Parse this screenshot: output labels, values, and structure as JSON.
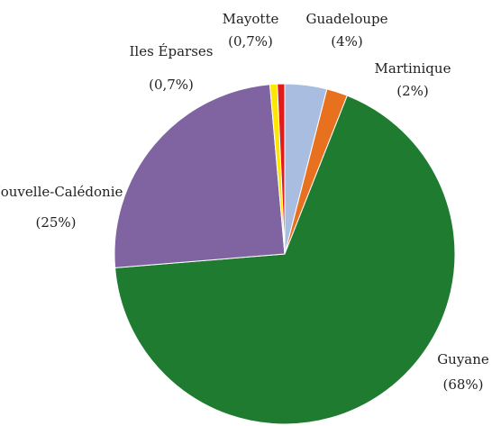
{
  "chart_data": {
    "type": "pie",
    "categories": [
      "Guadeloupe",
      "Martinique",
      "Guyane",
      "Nouvelle-Calédonie",
      "Iles Éparses",
      "Mayotte"
    ],
    "values": [
      4,
      2,
      68,
      25,
      0.7,
      0.7
    ],
    "value_labels": [
      "(4%)",
      "(2%)",
      "(68%)",
      "(25%)",
      "(0,7%)",
      "(0,7%)"
    ],
    "colors": [
      "#a9bde0",
      "#e8711f",
      "#1e7b30",
      "#8064a2",
      "#ffe600",
      "#e01b1b"
    ]
  }
}
